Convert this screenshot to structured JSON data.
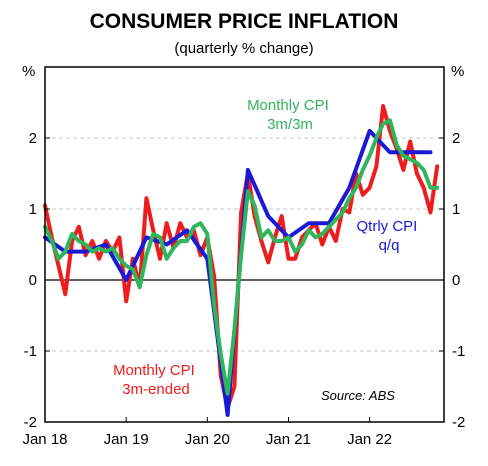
{
  "chart_data": {
    "type": "line",
    "title": "CONSUMER PRICE INFLATION",
    "subtitle": "(quarterly % change)",
    "ylabel_left": "%",
    "ylabel_right": "%",
    "ylim": [
      -2,
      3
    ],
    "yticks": [
      -2,
      -1,
      0,
      1,
      2
    ],
    "x_range": [
      "2018-01",
      "2022-12"
    ],
    "xticks": [
      {
        "label": "Jan 18",
        "x": "2018-01"
      },
      {
        "label": "Jan 19",
        "x": "2019-01"
      },
      {
        "label": "Jan 20",
        "x": "2020-01"
      },
      {
        "label": "Jan 21",
        "x": "2021-01"
      },
      {
        "label": "Jan 22",
        "x": "2022-01"
      }
    ],
    "grid": "dashed horizontal",
    "colors": {
      "monthly_3m_ended": "#ee1c1c",
      "monthly_3m3m": "#2fb55a",
      "qtrly": "#1a1ad6"
    },
    "series": [
      {
        "name": "Monthly CPI 3m-ended",
        "color": "#ee1c1c",
        "points": [
          [
            "2018-01",
            1.05
          ],
          [
            "2018-02",
            0.6
          ],
          [
            "2018-03",
            0.2
          ],
          [
            "2018-04",
            -0.2
          ],
          [
            "2018-05",
            0.55
          ],
          [
            "2018-06",
            0.75
          ],
          [
            "2018-07",
            0.35
          ],
          [
            "2018-08",
            0.55
          ],
          [
            "2018-09",
            0.3
          ],
          [
            "2018-10",
            0.55
          ],
          [
            "2018-11",
            0.4
          ],
          [
            "2018-12",
            0.6
          ],
          [
            "2019-01",
            -0.3
          ],
          [
            "2019-02",
            0.3
          ],
          [
            "2019-03",
            -0.1
          ],
          [
            "2019-04",
            1.15
          ],
          [
            "2019-05",
            0.7
          ],
          [
            "2019-06",
            0.3
          ],
          [
            "2019-07",
            0.8
          ],
          [
            "2019-08",
            0.45
          ],
          [
            "2019-09",
            0.8
          ],
          [
            "2019-10",
            0.6
          ],
          [
            "2019-11",
            0.7
          ],
          [
            "2019-12",
            0.35
          ],
          [
            "2020-01",
            0.6
          ],
          [
            "2020-02",
            0.05
          ],
          [
            "2020-03",
            -1.35
          ],
          [
            "2020-04",
            -1.8
          ],
          [
            "2020-05",
            -1.5
          ],
          [
            "2020-06",
            0.95
          ],
          [
            "2020-07",
            1.5
          ],
          [
            "2020-08",
            0.9
          ],
          [
            "2020-09",
            0.55
          ],
          [
            "2020-10",
            0.25
          ],
          [
            "2020-11",
            0.6
          ],
          [
            "2020-12",
            0.9
          ],
          [
            "2021-01",
            0.3
          ],
          [
            "2021-02",
            0.3
          ],
          [
            "2021-03",
            0.6
          ],
          [
            "2021-04",
            0.7
          ],
          [
            "2021-05",
            0.8
          ],
          [
            "2021-06",
            0.5
          ],
          [
            "2021-07",
            0.75
          ],
          [
            "2021-08",
            0.55
          ],
          [
            "2021-09",
            1.0
          ],
          [
            "2021-10",
            0.95
          ],
          [
            "2021-11",
            1.5
          ],
          [
            "2021-12",
            1.2
          ],
          [
            "2022-01",
            1.3
          ],
          [
            "2022-02",
            1.6
          ],
          [
            "2022-03",
            2.45
          ],
          [
            "2022-04",
            2.1
          ],
          [
            "2022-05",
            1.85
          ],
          [
            "2022-06",
            1.55
          ],
          [
            "2022-07",
            1.95
          ],
          [
            "2022-08",
            1.5
          ],
          [
            "2022-09",
            1.3
          ],
          [
            "2022-10",
            0.95
          ],
          [
            "2022-11",
            1.6
          ]
        ]
      },
      {
        "name": "Monthly CPI 3m/3m",
        "color": "#2fb55a",
        "points": [
          [
            "2018-01",
            0.75
          ],
          [
            "2018-02",
            0.55
          ],
          [
            "2018-03",
            0.3
          ],
          [
            "2018-04",
            0.4
          ],
          [
            "2018-05",
            0.65
          ],
          [
            "2018-06",
            0.55
          ],
          [
            "2018-07",
            0.5
          ],
          [
            "2018-08",
            0.4
          ],
          [
            "2018-09",
            0.45
          ],
          [
            "2018-10",
            0.4
          ],
          [
            "2018-11",
            0.45
          ],
          [
            "2018-12",
            0.3
          ],
          [
            "2019-01",
            0.2
          ],
          [
            "2019-02",
            0.15
          ],
          [
            "2019-03",
            -0.1
          ],
          [
            "2019-04",
            0.35
          ],
          [
            "2019-05",
            0.65
          ],
          [
            "2019-06",
            0.6
          ],
          [
            "2019-07",
            0.3
          ],
          [
            "2019-08",
            0.45
          ],
          [
            "2019-09",
            0.55
          ],
          [
            "2019-10",
            0.55
          ],
          [
            "2019-11",
            0.75
          ],
          [
            "2019-12",
            0.8
          ],
          [
            "2020-01",
            0.65
          ],
          [
            "2020-02",
            -0.35
          ],
          [
            "2020-03",
            -1.05
          ],
          [
            "2020-04",
            -1.6
          ],
          [
            "2020-05",
            -0.7
          ],
          [
            "2020-06",
            0.35
          ],
          [
            "2020-07",
            1.25
          ],
          [
            "2020-08",
            1.05
          ],
          [
            "2020-09",
            0.6
          ],
          [
            "2020-10",
            0.7
          ],
          [
            "2020-11",
            0.55
          ],
          [
            "2020-12",
            0.55
          ],
          [
            "2021-01",
            0.6
          ],
          [
            "2021-02",
            0.4
          ],
          [
            "2021-03",
            0.5
          ],
          [
            "2021-04",
            0.7
          ],
          [
            "2021-05",
            0.6
          ],
          [
            "2021-06",
            0.65
          ],
          [
            "2021-07",
            0.75
          ],
          [
            "2021-08",
            0.85
          ],
          [
            "2021-09",
            0.95
          ],
          [
            "2021-10",
            1.15
          ],
          [
            "2021-11",
            1.3
          ],
          [
            "2021-12",
            1.55
          ],
          [
            "2022-01",
            1.75
          ],
          [
            "2022-02",
            2.0
          ],
          [
            "2022-03",
            2.2
          ],
          [
            "2022-04",
            2.25
          ],
          [
            "2022-05",
            1.9
          ],
          [
            "2022-06",
            1.75
          ],
          [
            "2022-07",
            1.7
          ],
          [
            "2022-08",
            1.65
          ],
          [
            "2022-09",
            1.55
          ],
          [
            "2022-10",
            1.3
          ],
          [
            "2022-11",
            1.3
          ]
        ]
      },
      {
        "name": "Qtrly CPI q/q",
        "color": "#1a1ad6",
        "points": [
          [
            "2018-01",
            0.6
          ],
          [
            "2018-04",
            0.4
          ],
          [
            "2018-07",
            0.4
          ],
          [
            "2018-10",
            0.5
          ],
          [
            "2019-01",
            0.0
          ],
          [
            "2019-04",
            0.6
          ],
          [
            "2019-07",
            0.5
          ],
          [
            "2019-10",
            0.7
          ],
          [
            "2020-01",
            0.3
          ],
          [
            "2020-04",
            -1.9
          ],
          [
            "2020-07",
            1.55
          ],
          [
            "2020-10",
            0.9
          ],
          [
            "2021-01",
            0.6
          ],
          [
            "2021-04",
            0.8
          ],
          [
            "2021-07",
            0.8
          ],
          [
            "2021-10",
            1.3
          ],
          [
            "2022-01",
            2.1
          ],
          [
            "2022-04",
            1.8
          ],
          [
            "2022-07",
            1.8
          ],
          [
            "2022-10",
            1.8
          ]
        ]
      }
    ],
    "annotations": [
      {
        "text": "Monthly CPI",
        "text2": "3m/3m",
        "color": "#2fb55a"
      },
      {
        "text": "Qtrly CPI",
        "text2": "q/q",
        "color": "#1a1ad6"
      },
      {
        "text": "Monthly CPI",
        "text2": "3m-ended",
        "color": "#ee1c1c"
      },
      {
        "text": "Source: ABS",
        "color": "#000000"
      }
    ]
  }
}
